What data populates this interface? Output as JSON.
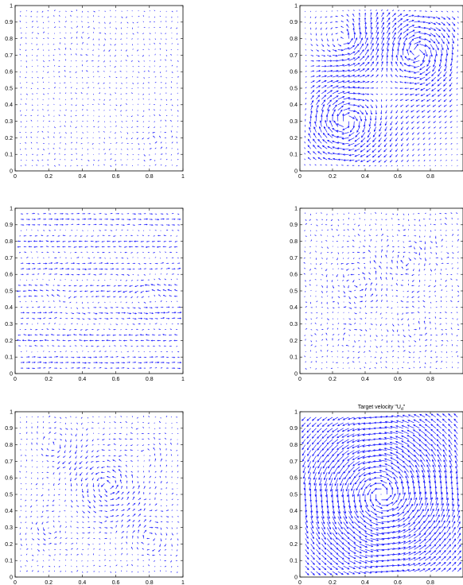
{
  "chart_data": [
    {
      "type": "quiver",
      "title": "",
      "xlim": [
        0,
        1
      ],
      "ylim": [
        0,
        1
      ],
      "x_ticks": [
        "0",
        "0.2",
        "0.4",
        "0.6",
        "0.8",
        "1"
      ],
      "y_ticks": [
        "0",
        "0.1",
        "0.2",
        "0.3",
        "0.4",
        "0.5",
        "0.6",
        "0.7",
        "0.8",
        "0.9",
        "1"
      ],
      "grid": false,
      "arrow_color": "#1a1aff",
      "field": {
        "kind": "sparse_random",
        "magnitude": 0.35,
        "vortices": [
          {
            "x": 0.82,
            "y": 0.18,
            "strength": 0.9,
            "radius": 0.09,
            "sign": 1
          },
          {
            "x": 0.45,
            "y": 0.78,
            "strength": 0.5,
            "radius": 0.15,
            "sign": -1
          }
        ],
        "noise": 0.6
      }
    },
    {
      "type": "quiver",
      "title": "",
      "xlim": [
        0,
        1
      ],
      "ylim": [
        0,
        1
      ],
      "x_ticks": [
        "0",
        "0.2",
        "0.4",
        "0.6",
        "0.8"
      ],
      "y_ticks": [
        "0",
        "0.1",
        "0.2",
        "0.3",
        "0.4",
        "0.5",
        "0.6",
        "0.7",
        "0.8",
        "0.9",
        "1"
      ],
      "grid": false,
      "arrow_color": "#1a1aff",
      "field": {
        "kind": "two_cells",
        "magnitude": 1.0,
        "vortices": [
          {
            "x": 0.72,
            "y": 0.72,
            "strength": 1.0,
            "radius": 0.28,
            "sign": -1
          },
          {
            "x": 0.28,
            "y": 0.3,
            "strength": 1.0,
            "radius": 0.28,
            "sign": -1
          },
          {
            "x": 0.27,
            "y": 0.78,
            "strength": 0.6,
            "radius": 0.2,
            "sign": 1
          }
        ],
        "noise": 0.1
      }
    },
    {
      "type": "quiver",
      "title": "",
      "xlim": [
        0,
        1
      ],
      "ylim": [
        0,
        1
      ],
      "x_ticks": [
        "0",
        "0.2",
        "0.4",
        "0.6",
        "0.8",
        "1"
      ],
      "y_ticks": [
        "0",
        "0.1",
        "0.2",
        "0.3",
        "0.4",
        "0.5",
        "0.6",
        "0.7",
        "0.8",
        "0.9",
        "1"
      ],
      "grid": false,
      "arrow_color": "#1a1aff",
      "field": {
        "kind": "horizontal_bands",
        "magnitude": 0.7,
        "vortices": [
          {
            "x": 0.8,
            "y": 0.5,
            "strength": 0.5,
            "radius": 0.12,
            "sign": 1
          },
          {
            "x": 0.3,
            "y": 0.45,
            "strength": 0.4,
            "radius": 0.12,
            "sign": -1
          }
        ],
        "noise": 0.25
      }
    },
    {
      "type": "quiver",
      "title": "",
      "xlim": [
        0,
        1
      ],
      "ylim": [
        0,
        1
      ],
      "x_ticks": [
        "0",
        "0.2",
        "0.4",
        "0.6",
        "0.8"
      ],
      "y_ticks": [
        "0",
        "0.1",
        "0.2",
        "0.3",
        "0.4",
        "0.5",
        "0.6",
        "0.7",
        "0.8",
        "0.9",
        "1"
      ],
      "grid": false,
      "arrow_color": "#1a1aff",
      "field": {
        "kind": "multi_vortex",
        "magnitude": 0.6,
        "vortices": [
          {
            "x": 0.35,
            "y": 0.55,
            "strength": 0.8,
            "radius": 0.14,
            "sign": 1
          },
          {
            "x": 0.65,
            "y": 0.68,
            "strength": 0.7,
            "radius": 0.13,
            "sign": -1
          },
          {
            "x": 0.7,
            "y": 0.3,
            "strength": 0.6,
            "radius": 0.12,
            "sign": 1
          },
          {
            "x": 0.3,
            "y": 0.2,
            "strength": 0.5,
            "radius": 0.1,
            "sign": -1
          },
          {
            "x": 0.85,
            "y": 0.82,
            "strength": 0.5,
            "radius": 0.1,
            "sign": 1
          }
        ],
        "noise": 0.45
      }
    },
    {
      "type": "quiver",
      "title": "",
      "xlim": [
        0,
        1
      ],
      "ylim": [
        0,
        1
      ],
      "x_ticks": [
        "0",
        "0.2",
        "0.4",
        "0.6",
        "0.8",
        "1"
      ],
      "y_ticks": [
        "0",
        "0.1",
        "0.2",
        "0.3",
        "0.4",
        "0.5",
        "0.6",
        "0.7",
        "0.8",
        "0.9",
        "1"
      ],
      "grid": false,
      "arrow_color": "#1a1aff",
      "field": {
        "kind": "multi_vortex",
        "magnitude": 0.7,
        "vortices": [
          {
            "x": 0.55,
            "y": 0.55,
            "strength": 1.0,
            "radius": 0.2,
            "sign": 1
          },
          {
            "x": 0.25,
            "y": 0.8,
            "strength": 0.7,
            "radius": 0.12,
            "sign": -1
          },
          {
            "x": 0.2,
            "y": 0.3,
            "strength": 0.6,
            "radius": 0.12,
            "sign": 1
          },
          {
            "x": 0.8,
            "y": 0.25,
            "strength": 0.7,
            "radius": 0.13,
            "sign": -1
          },
          {
            "x": 0.8,
            "y": 0.75,
            "strength": 0.5,
            "radius": 0.1,
            "sign": 1
          }
        ],
        "noise": 0.3
      }
    },
    {
      "type": "quiver",
      "title": "Target velocity \"U",
      "title_subscript": "d",
      "title_suffix": "\"",
      "xlim": [
        0,
        1
      ],
      "ylim": [
        0,
        1
      ],
      "x_ticks": [
        "0",
        "0.2",
        "0.4",
        "0.6",
        "0.8"
      ],
      "y_ticks": [
        "0",
        "0.1",
        "0.2",
        "0.3",
        "0.4",
        "0.5",
        "0.6",
        "0.7",
        "0.8",
        "0.9",
        "1"
      ],
      "grid": false,
      "arrow_color": "#1a1aff",
      "field": {
        "kind": "single_cell",
        "magnitude": 1.2,
        "vortices": [
          {
            "x": 0.5,
            "y": 0.5,
            "strength": 1.0,
            "radius": 0.5,
            "sign": 1
          }
        ],
        "noise": 0.05
      }
    }
  ]
}
